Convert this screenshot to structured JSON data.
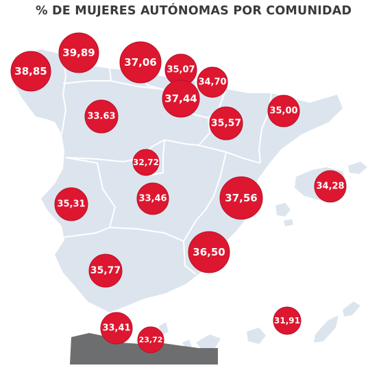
{
  "title": "% DE MUJERES AUTÓNOMAS POR COMUNIDAD",
  "colors": {
    "bubble": "#dd1730",
    "bubble_edge": "#b8102a",
    "land": "#dce5ee",
    "border": "#ffffff",
    "africa": "#6d6e70"
  },
  "regions": [
    {
      "id": "galicia",
      "value": "38,85"
    },
    {
      "id": "asturias",
      "value": "39,89"
    },
    {
      "id": "cantabria",
      "value": "37,06"
    },
    {
      "id": "pais-vasco",
      "value": "35,07"
    },
    {
      "id": "navarra",
      "value": "34,70"
    },
    {
      "id": "la-rioja",
      "value": "37,44"
    },
    {
      "id": "castilla-y-leon",
      "value": "33.63"
    },
    {
      "id": "aragon",
      "value": "35,57"
    },
    {
      "id": "cataluna",
      "value": "35,00"
    },
    {
      "id": "madrid",
      "value": "32,72"
    },
    {
      "id": "baleares",
      "value": "34,28"
    },
    {
      "id": "extremadura",
      "value": "35,31"
    },
    {
      "id": "castilla-la-mancha",
      "value": "33,46"
    },
    {
      "id": "comunidad-valenciana",
      "value": "37,56"
    },
    {
      "id": "murcia",
      "value": "36,50"
    },
    {
      "id": "andalucia",
      "value": "35,77"
    },
    {
      "id": "ceuta",
      "value": "33,41"
    },
    {
      "id": "melilla",
      "value": "23,72"
    },
    {
      "id": "canarias",
      "value": "31,91"
    }
  ]
}
